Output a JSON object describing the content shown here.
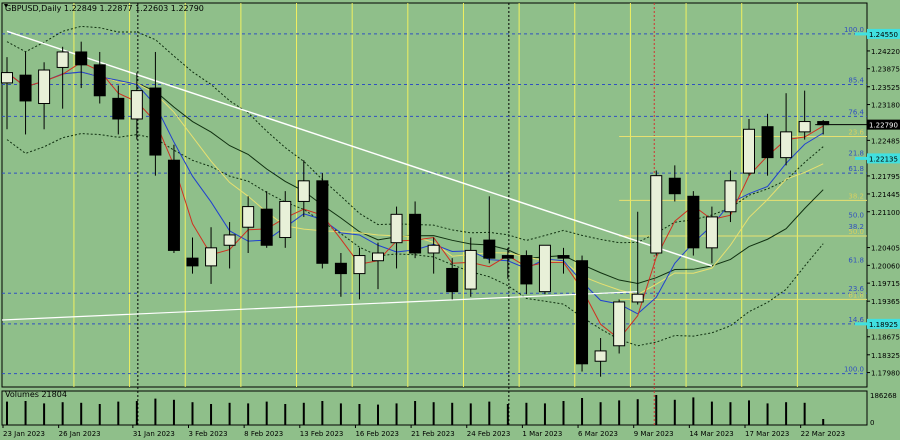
{
  "header": {
    "symbol_line": "GBPUSD,Daily  1.22849 1.22877 1.22603 1.22790"
  },
  "volume_label": "Volumes 21804",
  "chart_data": {
    "type": "candlestick",
    "timeframe": "Daily",
    "ylim": [
      1.177,
      1.2515
    ],
    "price_ticks": [
      "1.24220",
      "1.23875",
      "1.23525",
      "1.23180",
      "1.22485",
      "1.21795",
      "1.21445",
      "1.21100",
      "1.20405",
      "1.20060",
      "1.19715",
      "1.19365",
      "1.18675",
      "1.18325",
      "1.17980"
    ],
    "price_tick_values": [
      1.2422,
      1.23875,
      1.23525,
      1.2318,
      1.22485,
      1.21795,
      1.21445,
      1.211,
      1.20405,
      1.2006,
      1.19715,
      1.19365,
      1.18675,
      1.18325,
      1.1798
    ],
    "current_price": "1.22790",
    "current_price_value": 1.2279,
    "highlight_price_labels": [
      {
        "text": "1.22790",
        "value": 1.2279
      },
      {
        "text": "1.22135",
        "value": 1.22135
      },
      {
        "text": "1.18925",
        "value": 1.18925
      },
      {
        "text": "1.24550",
        "value": 1.2455
      }
    ],
    "date_labels": [
      "23 Jan 2023",
      "26 Jan 2023",
      "31 Jan 2023",
      "3 Feb 2023",
      "8 Feb 2023",
      "13 Feb 2023",
      "16 Feb 2023",
      "21 Feb 2023",
      "24 Feb 2023",
      "1 Mar 2023",
      "6 Mar 2023",
      "9 Mar 2023",
      "14 Mar 2023",
      "17 Mar 2023",
      "22 Mar 2023"
    ],
    "date_label_index": [
      0,
      3,
      7,
      10,
      13,
      16,
      19,
      22,
      25,
      28,
      31,
      34,
      37,
      40,
      43
    ],
    "candles": [
      {
        "o": 1.236,
        "h": 1.241,
        "l": 1.227,
        "c": 1.238
      },
      {
        "o": 1.2375,
        "h": 1.242,
        "l": 1.226,
        "c": 1.2325
      },
      {
        "o": 1.232,
        "h": 1.24,
        "l": 1.227,
        "c": 1.2385
      },
      {
        "o": 1.239,
        "h": 1.243,
        "l": 1.231,
        "c": 1.242
      },
      {
        "o": 1.242,
        "h": 1.244,
        "l": 1.235,
        "c": 1.2395
      },
      {
        "o": 1.2395,
        "h": 1.242,
        "l": 1.232,
        "c": 1.2335
      },
      {
        "o": 1.233,
        "h": 1.2355,
        "l": 1.226,
        "c": 1.229
      },
      {
        "o": 1.229,
        "h": 1.238,
        "l": 1.225,
        "c": 1.2345
      },
      {
        "o": 1.235,
        "h": 1.242,
        "l": 1.218,
        "c": 1.222
      },
      {
        "o": 1.221,
        "h": 1.224,
        "l": 1.203,
        "c": 1.2035
      },
      {
        "o": 1.202,
        "h": 1.206,
        "l": 1.199,
        "c": 1.2005
      },
      {
        "o": 1.2005,
        "h": 1.208,
        "l": 1.197,
        "c": 1.204
      },
      {
        "o": 1.2045,
        "h": 1.209,
        "l": 1.2,
        "c": 1.2065
      },
      {
        "o": 1.208,
        "h": 1.214,
        "l": 1.203,
        "c": 1.212
      },
      {
        "o": 1.2115,
        "h": 1.215,
        "l": 1.204,
        "c": 1.2045
      },
      {
        "o": 1.206,
        "h": 1.215,
        "l": 1.204,
        "c": 1.213
      },
      {
        "o": 1.213,
        "h": 1.221,
        "l": 1.21,
        "c": 1.217
      },
      {
        "o": 1.217,
        "h": 1.2185,
        "l": 1.2,
        "c": 1.201
      },
      {
        "o": 1.201,
        "h": 1.203,
        "l": 1.1945,
        "c": 1.199
      },
      {
        "o": 1.199,
        "h": 1.204,
        "l": 1.194,
        "c": 1.2025
      },
      {
        "o": 1.2015,
        "h": 1.205,
        "l": 1.196,
        "c": 1.203
      },
      {
        "o": 1.205,
        "h": 1.212,
        "l": 1.2,
        "c": 1.2105
      },
      {
        "o": 1.2105,
        "h": 1.213,
        "l": 1.202,
        "c": 1.203
      },
      {
        "o": 1.203,
        "h": 1.206,
        "l": 1.199,
        "c": 1.2045
      },
      {
        "o": 1.2,
        "h": 1.202,
        "l": 1.194,
        "c": 1.1955
      },
      {
        "o": 1.196,
        "h": 1.206,
        "l": 1.1945,
        "c": 1.2035
      },
      {
        "o": 1.2055,
        "h": 1.214,
        "l": 1.201,
        "c": 1.202
      },
      {
        "o": 1.2025,
        "h": 1.204,
        "l": 1.198,
        "c": 1.202
      },
      {
        "o": 1.2025,
        "h": 1.2035,
        "l": 1.195,
        "c": 1.197
      },
      {
        "o": 1.1955,
        "h": 1.204,
        "l": 1.195,
        "c": 1.2045
      },
      {
        "o": 1.2025,
        "h": 1.204,
        "l": 1.199,
        "c": 1.202
      },
      {
        "o": 1.2015,
        "h": 1.2025,
        "l": 1.18,
        "c": 1.1815
      },
      {
        "o": 1.182,
        "h": 1.1865,
        "l": 1.179,
        "c": 1.184
      },
      {
        "o": 1.185,
        "h": 1.194,
        "l": 1.1835,
        "c": 1.1935
      },
      {
        "o": 1.1935,
        "h": 1.211,
        "l": 1.193,
        "c": 1.195
      },
      {
        "o": 1.203,
        "h": 1.219,
        "l": 1.2025,
        "c": 1.218
      },
      {
        "o": 1.2175,
        "h": 1.22,
        "l": 1.213,
        "c": 1.2145
      },
      {
        "o": 1.214,
        "h": 1.215,
        "l": 1.2025,
        "c": 1.204
      },
      {
        "o": 1.204,
        "h": 1.212,
        "l": 1.201,
        "c": 1.21
      },
      {
        "o": 1.211,
        "h": 1.219,
        "l": 1.209,
        "c": 1.217
      },
      {
        "o": 1.2185,
        "h": 1.229,
        "l": 1.218,
        "c": 1.227
      },
      {
        "o": 1.2275,
        "h": 1.23,
        "l": 1.218,
        "c": 1.2215
      },
      {
        "o": 1.2215,
        "h": 1.234,
        "l": 1.22,
        "c": 1.2265
      },
      {
        "o": 1.2265,
        "h": 1.2345,
        "l": 1.225,
        "c": 1.2285
      },
      {
        "o": 1.2285,
        "h": 1.2288,
        "l": 1.226,
        "c": 1.2279
      }
    ],
    "volumes": [
      0.78,
      0.8,
      0.72,
      0.76,
      0.74,
      0.7,
      0.78,
      0.8,
      0.88,
      0.84,
      0.76,
      0.7,
      0.74,
      0.72,
      0.78,
      0.7,
      0.74,
      0.8,
      0.72,
      0.7,
      0.68,
      0.72,
      0.8,
      0.76,
      0.74,
      0.72,
      0.78,
      0.7,
      0.74,
      0.72,
      0.8,
      0.9,
      0.76,
      0.82,
      0.86,
      1.0,
      0.84,
      0.92,
      0.78,
      0.76,
      0.82,
      0.72,
      0.76,
      0.74,
      0.2
    ],
    "volume_axis_labels": [
      "186268",
      "0"
    ],
    "fibo_levels_upper": [
      {
        "label": "100.0",
        "value": 1.2455
      },
      {
        "label": "85.4",
        "value": 1.2357
      },
      {
        "label": "76.4",
        "value": 1.2295
      },
      {
        "label": "61.8",
        "value": 1.2185
      }
    ],
    "fibo_levels_lower": [
      {
        "label": "23.6",
        "value": 1.1952
      },
      {
        "label": "14.6",
        "value": 1.18925
      },
      {
        "label": "100.0",
        "value": 1.1796
      }
    ],
    "fibo_yellow_levels": [
      {
        "label": "23.6",
        "value": 1.2256
      },
      {
        "label": "38.2",
        "value": 1.2132
      },
      {
        "label": "50.0",
        "value": 1.2063
      },
      {
        "label": "61.8",
        "value": 1.194
      }
    ],
    "fibo_mid_levels": [
      {
        "label": "38.2",
        "value": 1.2073
      },
      {
        "label": "50.0",
        "value": 1.2095
      },
      {
        "label": "61.8",
        "value": 1.2008
      },
      {
        "label": "21.8",
        "value": 1.2215
      }
    ],
    "colors": {
      "background": "#8fbf8a",
      "bull_body": "#e8f0d8",
      "bear_body": "#000000",
      "ma_fast": "#d03020",
      "ma_mid": "#2040d0",
      "ma_slow": "#e8e070",
      "ma_slowest": "#103010",
      "trendline": "#ffffff",
      "fibo_blue": "#3050c0",
      "fibo_yellow": "#e8e070",
      "highlight_cyan": "#40e0e0",
      "vline_yellow": "#f0f060",
      "vline_red": "#d03030"
    }
  }
}
